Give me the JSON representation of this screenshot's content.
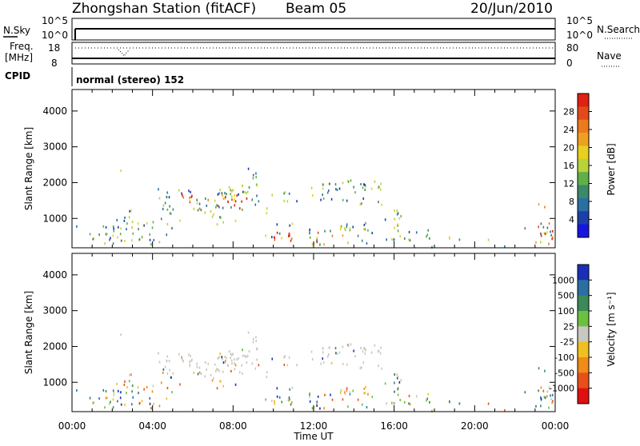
{
  "header": {
    "station": "Zhongshan Station (fitACF)",
    "beam": "Beam 05",
    "date": "20/Jun/2010"
  },
  "strips": {
    "nsky_label": "N.Sky",
    "nsky_ticks": [
      "10^5",
      "10^0"
    ],
    "nsearch_label": "N.Search",
    "nsearch_ticks": [
      "10^5",
      "10^0"
    ],
    "freq_label": "Freq.",
    "freq_unit": "[MHz]",
    "freq_ticks": [
      "18",
      "8"
    ],
    "nave_label": "Nave",
    "nave_ticks": [
      "80",
      "0"
    ],
    "cpid_label": "CPID",
    "cpid_text": "normal (stereo) 152"
  },
  "chart_data": [
    {
      "type": "heatmap",
      "title": "",
      "ylabel": "Slant Range [km]",
      "xlabel": "",
      "y_ticks": [
        "1000",
        "2000",
        "3000",
        "4000"
      ],
      "ylim": [
        180,
        4600
      ],
      "xlim": [
        0,
        24
      ],
      "colorbar": {
        "label": "Power [dB]",
        "ticks": [
          "4",
          "8",
          "12",
          "16",
          "20",
          "24",
          "28"
        ],
        "colors": [
          "#1616e0",
          "#1d3fa8",
          "#2a6fa2",
          "#3a8a6a",
          "#5fb04a",
          "#b8d23a",
          "#e8d020",
          "#f0a020",
          "#ec7a1c",
          "#e44a18",
          "#e02010"
        ]
      }
    },
    {
      "type": "heatmap",
      "title": "",
      "ylabel": "Slant Range [km]",
      "xlabel": "Time UT",
      "x_ticks": [
        "00:00",
        "04:00",
        "08:00",
        "12:00",
        "16:00",
        "20:00",
        "00:00"
      ],
      "y_ticks": [
        "1000",
        "2000",
        "3000",
        "4000"
      ],
      "ylim": [
        180,
        4600
      ],
      "xlim": [
        0,
        24
      ],
      "colorbar": {
        "label": "Velocity [m s⁻¹]",
        "ticks": [
          "1000",
          "500",
          "100",
          "25",
          "-25",
          "-100",
          "-500",
          "-1000"
        ],
        "colors": [
          "#1a2fb8",
          "#2a6fa2",
          "#3a8a5a",
          "#6cc040",
          "#c8c8c0",
          "#f0c020",
          "#f08a18",
          "#e85018",
          "#e01010"
        ]
      }
    }
  ]
}
